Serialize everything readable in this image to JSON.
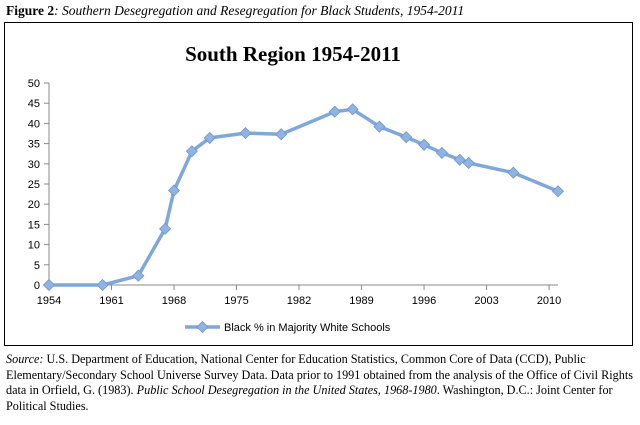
{
  "figure": {
    "label": "Figure 2",
    "title_sep": ": ",
    "title": "Southern Desegregation and Resegregation for Black Students, 1954-2011"
  },
  "chart_data": {
    "type": "line",
    "title": "South Region 1954-2011",
    "xlabel": "",
    "ylabel": "",
    "xlim": [
      1954,
      2011
    ],
    "ylim": [
      0,
      50
    ],
    "x_ticks": [
      1954,
      1961,
      1968,
      1975,
      1982,
      1989,
      1996,
      2003,
      2010
    ],
    "y_ticks": [
      0,
      5,
      10,
      15,
      20,
      25,
      30,
      35,
      40,
      45,
      50
    ],
    "grid": false,
    "legend_position": "bottom",
    "series": [
      {
        "name": "Black % in Majority White Schools",
        "color": "#7fa7d9",
        "marker_color": "#8fb4e3",
        "x": [
          1954,
          1960,
          1964,
          1967,
          1968,
          1970,
          1972,
          1976,
          1980,
          1986,
          1988,
          1991,
          1994,
          1996,
          1998,
          2000,
          2001,
          2006,
          2011
        ],
        "y": [
          0,
          0,
          2.3,
          13.9,
          23.4,
          33.1,
          36.4,
          37.6,
          37.3,
          42.9,
          43.5,
          39.2,
          36.6,
          34.7,
          32.7,
          31.0,
          30.2,
          27.8,
          23.2
        ]
      }
    ]
  },
  "source": {
    "label": "Source:",
    "text1": " U.S. Department of Education, National Center for Education Statistics, Common Core of Data (CCD), Public Elementary/Secondary School Universe Survey Data. Data prior to 1991 obtained from the analysis of the Office of Civil Rights data in Orfield, G. (1983). ",
    "pub_title": "Public School Desegregation in the United States, 1968-1980",
    "text2": ". Washington, D.C.: Joint Center for Political Studies."
  }
}
